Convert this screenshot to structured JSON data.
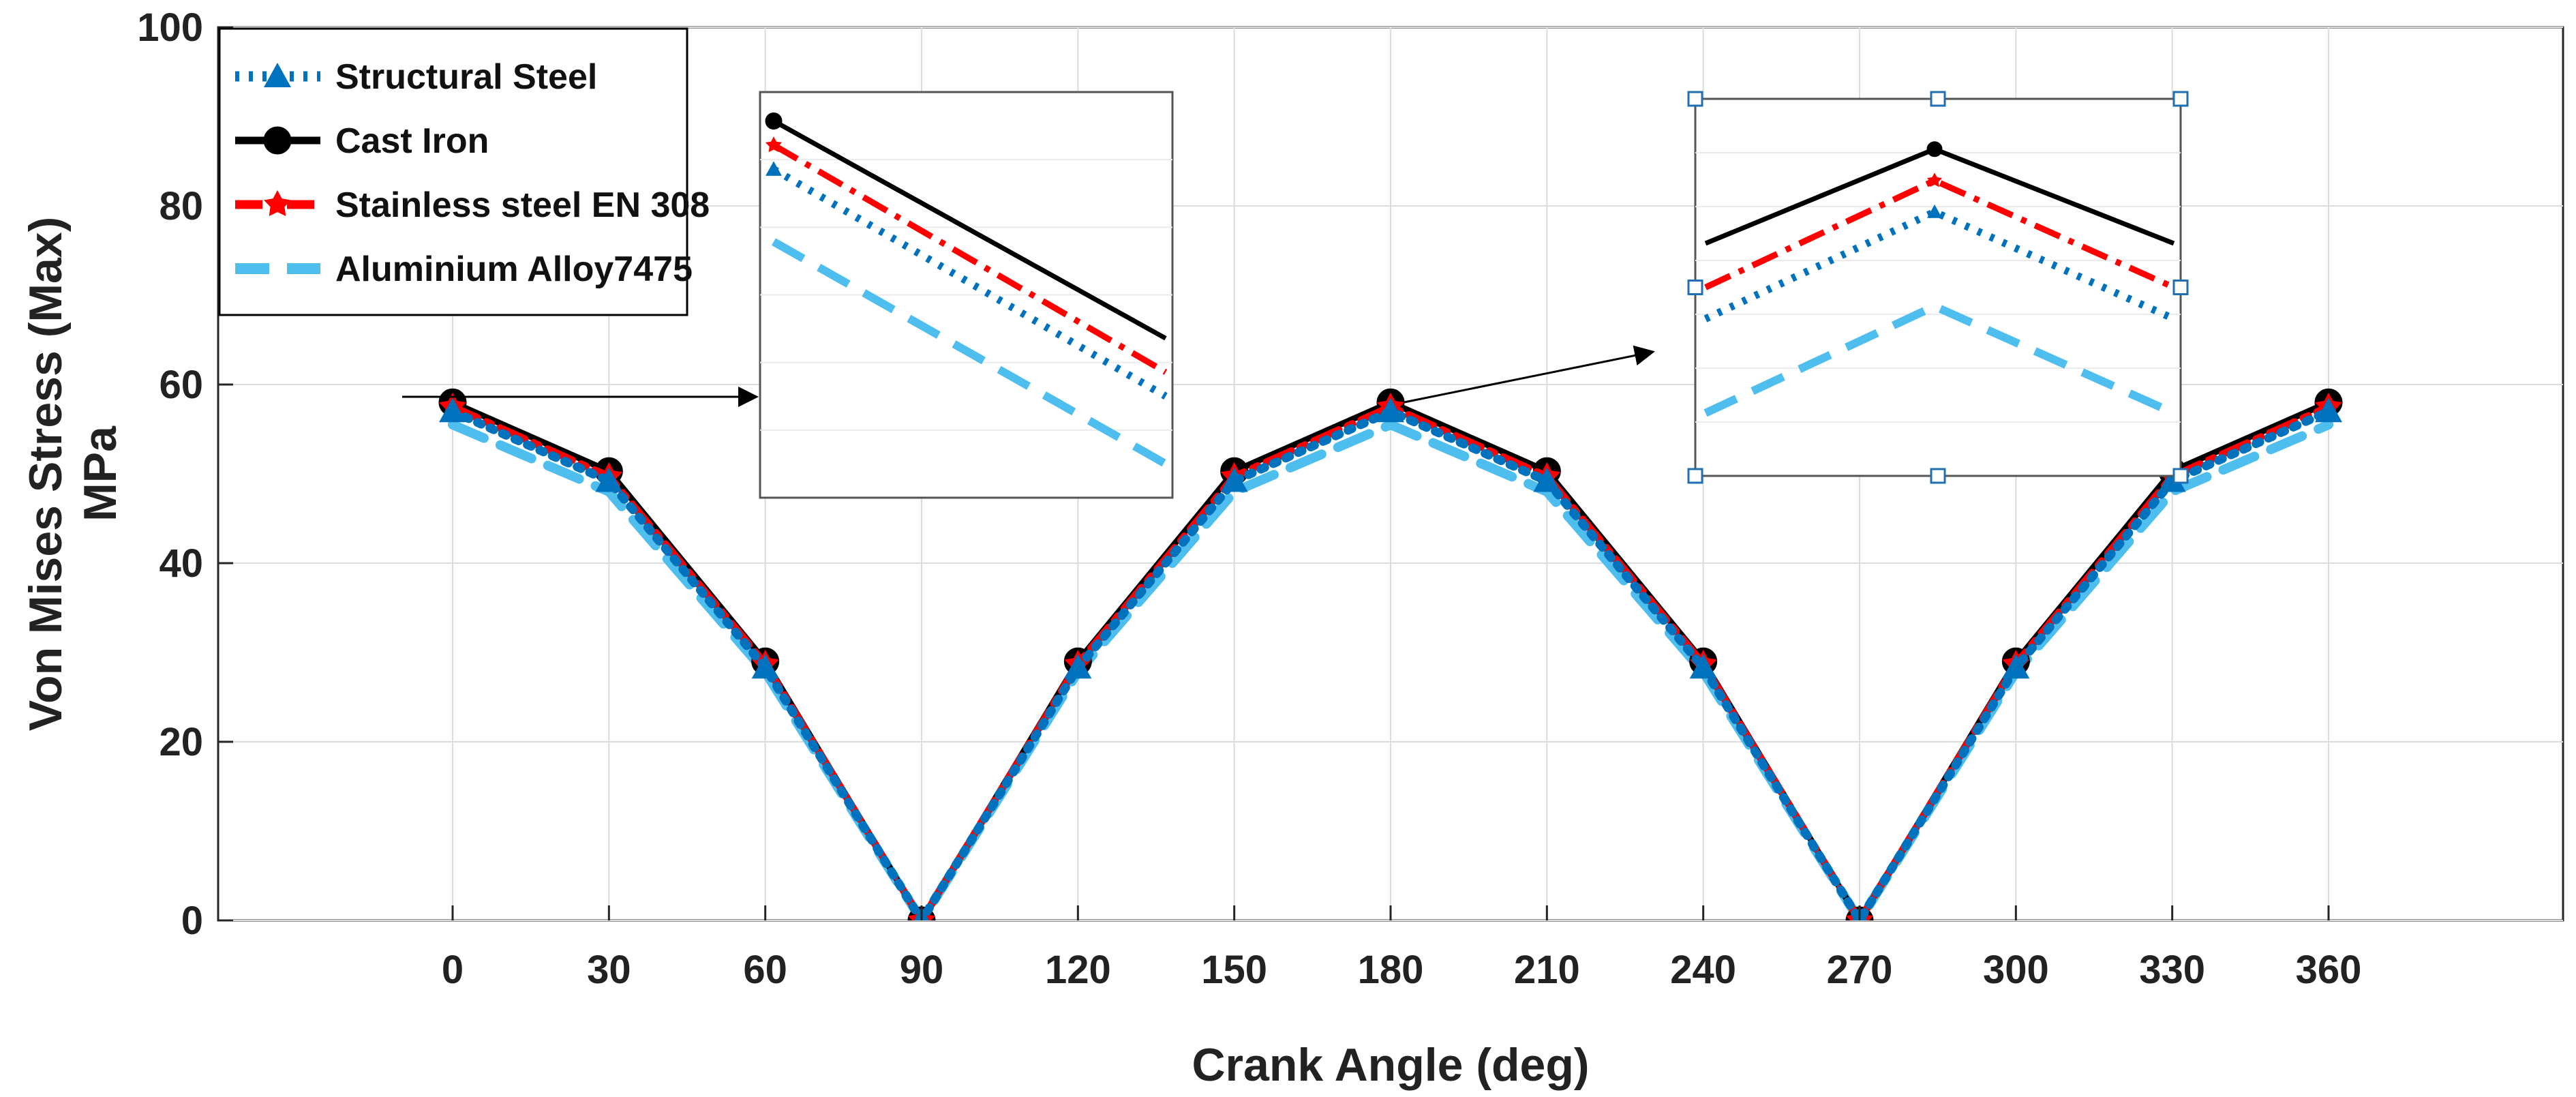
{
  "chart_data": {
    "type": "line",
    "title": "",
    "xlabel": "Crank Angle (deg)",
    "ylabel_line1": "Von Mises Stress (Max)",
    "ylabel_line2": "MPa",
    "xlim": [
      -45,
      405
    ],
    "ylim": [
      0,
      100
    ],
    "xticks": [
      0,
      30,
      60,
      90,
      120,
      150,
      180,
      210,
      240,
      270,
      300,
      330,
      360
    ],
    "yticks": [
      0,
      20,
      40,
      60,
      80,
      100
    ],
    "grid": true,
    "legend_position": "top-left",
    "x": [
      0,
      30,
      60,
      90,
      120,
      150,
      180,
      210,
      240,
      270,
      300,
      330,
      360
    ],
    "series": [
      {
        "name": "Structural Steel",
        "color": "#0072BD",
        "dash": "dotted",
        "marker": "triangle",
        "values": [
          57.0,
          49.2,
          28.3,
          0,
          28.3,
          49.2,
          57.0,
          49.2,
          28.3,
          0,
          28.3,
          49.2,
          57.0
        ]
      },
      {
        "name": "Cast Iron",
        "color": "#000000",
        "dash": "solid",
        "marker": "circle",
        "values": [
          58.0,
          50.3,
          29.0,
          0,
          29.0,
          50.3,
          58.0,
          50.3,
          29.0,
          0,
          29.0,
          50.3,
          58.0
        ]
      },
      {
        "name": "Stainless steel EN 308",
        "color": "#FF0000",
        "dash": "dashdot",
        "marker": "star",
        "values": [
          57.5,
          49.7,
          28.7,
          0,
          28.7,
          49.7,
          57.5,
          49.7,
          28.7,
          0,
          28.7,
          49.7,
          57.5
        ]
      },
      {
        "name": "Aluminium Alloy7475",
        "color": "#4DBEEE",
        "dash": "dashed",
        "marker": "none",
        "values": [
          55.5,
          48.0,
          27.8,
          0,
          27.8,
          48.0,
          55.5,
          48.0,
          27.8,
          0,
          27.8,
          48.0,
          55.5
        ]
      }
    ],
    "insets": [
      {
        "name": "zoom-near-0-deg",
        "points_to_x": 0,
        "points_to_y": 58,
        "series_samples": [
          {
            "series": "Cast Iron",
            "start": 58.0,
            "end": 53.5
          },
          {
            "series": "Stainless steel EN 308",
            "start": 57.5,
            "end": 52.8
          },
          {
            "series": "Structural Steel",
            "start": 57.0,
            "end": 52.3
          },
          {
            "series": "Aluminium Alloy7475",
            "start": 55.5,
            "end": 50.9
          }
        ]
      },
      {
        "name": "zoom-near-180-deg",
        "points_to_x": 180,
        "points_to_y": 58,
        "series_samples": [
          {
            "series": "Cast Iron",
            "edge": 56.5,
            "peak": 58.0
          },
          {
            "series": "Stainless steel EN 308",
            "edge": 55.8,
            "peak": 57.5
          },
          {
            "series": "Structural Steel",
            "edge": 55.3,
            "peak": 57.0
          },
          {
            "series": "Aluminium Alloy7475",
            "edge": 53.8,
            "peak": 55.5
          }
        ]
      }
    ]
  }
}
